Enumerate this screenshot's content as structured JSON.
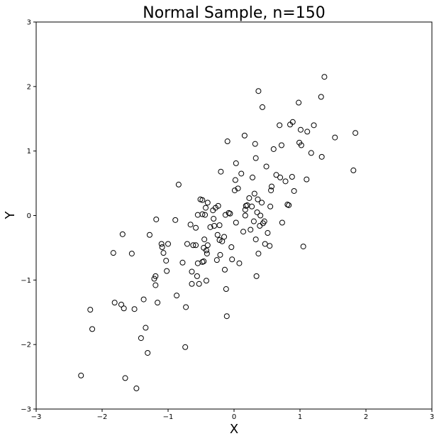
{
  "chart_data": {
    "type": "scatter",
    "title": "Normal Sample, n=150",
    "xlabel": "X",
    "ylabel": "Y",
    "xlim": [
      -3,
      3
    ],
    "ylim": [
      -3,
      3
    ],
    "xticks": [
      -3,
      -2,
      -1,
      0,
      1,
      2,
      3
    ],
    "yticks": [
      -3,
      -2,
      -1,
      0,
      1,
      2,
      3
    ],
    "xtick_labels": [
      "−3",
      "−2",
      "−1",
      "0",
      "1",
      "2",
      "3"
    ],
    "ytick_labels": [
      "−3",
      "−2",
      "−1",
      "0",
      "1",
      "2",
      "3"
    ],
    "grid": false,
    "marker": "open-circle",
    "marker_color": "#000000",
    "points": [
      [
        -2.32,
        -2.48
      ],
      [
        -2.18,
        -1.46
      ],
      [
        -2.15,
        -1.76
      ],
      [
        -1.83,
        -0.58
      ],
      [
        -1.81,
        -1.35
      ],
      [
        -1.71,
        -1.38
      ],
      [
        -1.69,
        -0.29
      ],
      [
        -1.67,
        -1.44
      ],
      [
        -1.65,
        -2.52
      ],
      [
        -1.55,
        -0.59
      ],
      [
        -1.51,
        -1.45
      ],
      [
        -1.48,
        -2.68
      ],
      [
        -1.41,
        -1.9
      ],
      [
        -1.37,
        -1.3
      ],
      [
        -1.34,
        -1.74
      ],
      [
        -1.31,
        -2.13
      ],
      [
        -1.28,
        -0.3
      ],
      [
        -1.21,
        -0.98
      ],
      [
        -1.19,
        -0.94
      ],
      [
        -1.19,
        -1.08
      ],
      [
        -1.18,
        -0.06
      ],
      [
        -1.16,
        -1.35
      ],
      [
        -1.1,
        -0.44
      ],
      [
        -1.09,
        -0.49
      ],
      [
        -1.07,
        -0.58
      ],
      [
        -1.03,
        -0.7
      ],
      [
        -1.02,
        -0.86
      ],
      [
        -1.0,
        -0.44
      ],
      [
        -0.89,
        -0.07
      ],
      [
        -0.87,
        -1.24
      ],
      [
        -0.84,
        0.48
      ],
      [
        -0.78,
        -0.73
      ],
      [
        -0.74,
        -2.04
      ],
      [
        -0.73,
        -1.42
      ],
      [
        -0.71,
        -0.44
      ],
      [
        -0.66,
        -0.14
      ],
      [
        -0.64,
        -1.06
      ],
      [
        -0.64,
        -0.87
      ],
      [
        -0.62,
        -0.46
      ],
      [
        -0.58,
        -0.46
      ],
      [
        -0.58,
        -0.19
      ],
      [
        -0.56,
        -0.94
      ],
      [
        -0.55,
        0.01
      ],
      [
        -0.55,
        -0.74
      ],
      [
        -0.53,
        -1.06
      ],
      [
        -0.51,
        0.25
      ],
      [
        -0.48,
        0.24
      ],
      [
        -0.48,
        0.02
      ],
      [
        -0.48,
        -0.72
      ],
      [
        -0.46,
        -0.71
      ],
      [
        -0.46,
        -0.5
      ],
      [
        -0.45,
        -0.37
      ],
      [
        -0.44,
        0.01
      ],
      [
        -0.43,
        0.12
      ],
      [
        -0.42,
        -0.54
      ],
      [
        -0.42,
        -1.01
      ],
      [
        -0.41,
        -0.59
      ],
      [
        -0.4,
        -0.46
      ],
      [
        -0.4,
        0.2
      ],
      [
        -0.36,
        -0.18
      ],
      [
        -0.32,
        0.08
      ],
      [
        -0.31,
        -0.05
      ],
      [
        -0.3,
        -0.16
      ],
      [
        -0.28,
        0.12
      ],
      [
        -0.26,
        -0.69
      ],
      [
        -0.25,
        -0.3
      ],
      [
        -0.24,
        0.15
      ],
      [
        -0.22,
        -0.38
      ],
      [
        -0.22,
        -0.15
      ],
      [
        -0.21,
        -0.61
      ],
      [
        -0.2,
        0.68
      ],
      [
        -0.18,
        -0.4
      ],
      [
        -0.15,
        -0.33
      ],
      [
        -0.14,
        -0.84
      ],
      [
        -0.13,
        0.01
      ],
      [
        -0.12,
        -1.14
      ],
      [
        -0.11,
        -1.56
      ],
      [
        -0.1,
        1.15
      ],
      [
        -0.08,
        0.04
      ],
      [
        -0.04,
        -0.49
      ],
      [
        -0.03,
        -0.68
      ],
      [
        0.01,
        0.39
      ],
      [
        0.02,
        0.55
      ],
      [
        0.03,
        0.81
      ],
      [
        0.03,
        -0.11
      ],
      [
        0.06,
        0.42
      ],
      [
        0.08,
        -0.74
      ],
      [
        0.11,
        0.65
      ],
      [
        0.14,
        -0.25
      ],
      [
        0.16,
        1.24
      ],
      [
        0.17,
        0.09
      ],
      [
        0.17,
        0.0
      ],
      [
        0.18,
        0.15
      ],
      [
        0.2,
        0.16
      ],
      [
        0.23,
        0.27
      ],
      [
        0.25,
        -0.22
      ],
      [
        0.27,
        0.14
      ],
      [
        0.28,
        0.59
      ],
      [
        0.3,
        -0.09
      ],
      [
        0.31,
        0.34
      ],
      [
        0.32,
        1.11
      ],
      [
        0.33,
        0.89
      ],
      [
        0.33,
        -0.37
      ],
      [
        0.34,
        -0.94
      ],
      [
        0.35,
        0.05
      ],
      [
        0.36,
        0.25
      ],
      [
        0.37,
        1.93
      ],
      [
        0.37,
        -0.59
      ],
      [
        0.39,
        -0.16
      ],
      [
        0.42,
        0.2
      ],
      [
        0.43,
        1.68
      ],
      [
        0.44,
        -0.12
      ],
      [
        0.46,
        -0.09
      ],
      [
        0.47,
        -0.44
      ],
      [
        0.49,
        0.76
      ],
      [
        0.51,
        -0.27
      ],
      [
        0.54,
        -0.47
      ],
      [
        0.55,
        0.14
      ],
      [
        0.56,
        0.39
      ],
      [
        0.57,
        0.45
      ],
      [
        0.6,
        1.03
      ],
      [
        0.64,
        0.63
      ],
      [
        0.69,
        1.4
      ],
      [
        0.7,
        0.59
      ],
      [
        0.72,
        1.09
      ],
      [
        0.73,
        -0.11
      ],
      [
        0.78,
        0.53
      ],
      [
        0.81,
        0.17
      ],
      [
        0.83,
        0.16
      ],
      [
        0.85,
        1.41
      ],
      [
        0.88,
        0.6
      ],
      [
        0.89,
        1.45
      ],
      [
        0.91,
        0.38
      ],
      [
        0.98,
        1.75
      ],
      [
        0.99,
        1.13
      ],
      [
        1.01,
        1.33
      ],
      [
        1.02,
        1.09
      ],
      [
        1.05,
        -0.48
      ],
      [
        1.1,
        0.56
      ],
      [
        1.11,
        1.3
      ],
      [
        1.17,
        0.97
      ],
      [
        1.21,
        1.4
      ],
      [
        1.32,
        1.84
      ],
      [
        1.33,
        0.91
      ],
      [
        1.37,
        2.15
      ],
      [
        1.53,
        1.21
      ],
      [
        1.81,
        0.7
      ],
      [
        1.84,
        1.28
      ],
      [
        0.4,
        0.0
      ],
      [
        -0.06,
        0.03
      ]
    ]
  }
}
